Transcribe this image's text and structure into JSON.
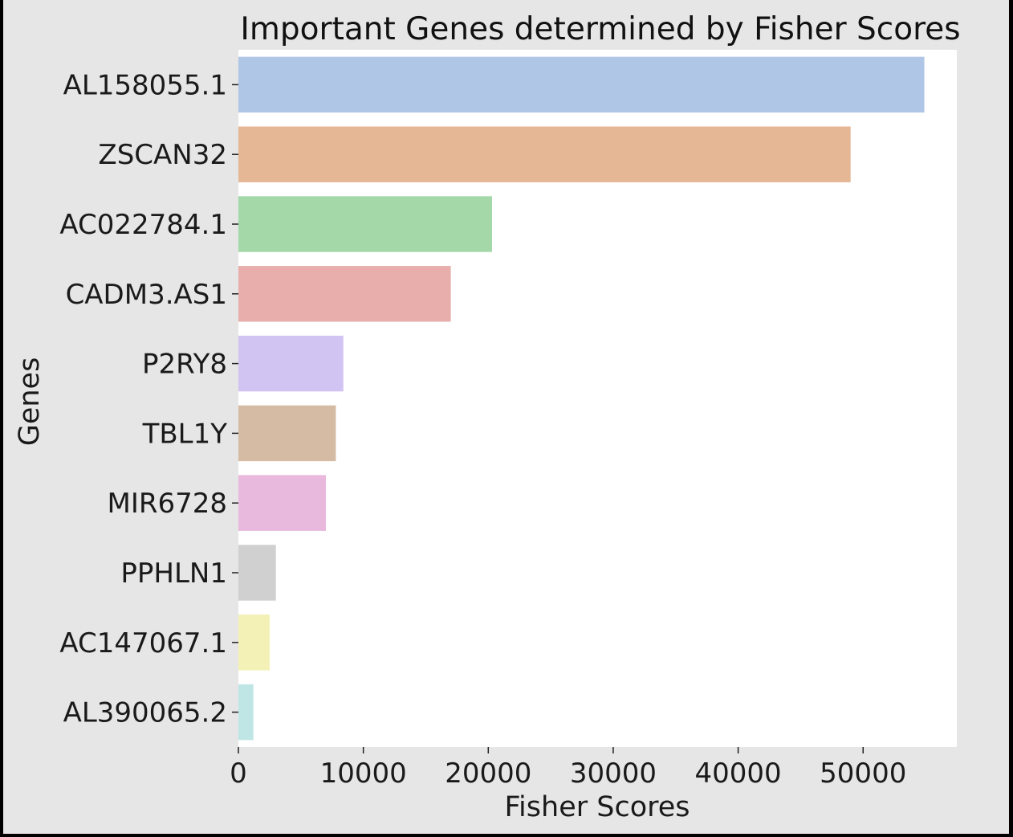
{
  "chart_data": {
    "type": "bar",
    "orientation": "horizontal",
    "title": "Important Genes determined by Fisher Scores",
    "xlabel": "Fisher Scores",
    "ylabel": "Genes",
    "categories": [
      "AL158055.1",
      "ZSCAN32",
      "AC022784.1",
      "CADM3.AS1",
      "P2RY8",
      "TBL1Y",
      "MIR6728",
      "PPHLN1",
      "AC147067.1",
      "AL390065.2"
    ],
    "values": [
      54900,
      49000,
      20300,
      17000,
      8400,
      7800,
      7000,
      3000,
      2500,
      1200
    ],
    "colors": [
      "#b0c6e6",
      "#e5b795",
      "#a5d8a9",
      "#e7aeab",
      "#d2c4f2",
      "#d5bba4",
      "#e8b8dd",
      "#d0d0d0",
      "#f3f1b6",
      "#bfe6e4"
    ],
    "xlim": [
      0,
      57500
    ],
    "xticks": [
      0,
      10000,
      20000,
      30000,
      40000,
      50000
    ],
    "grid": false,
    "legend": "none"
  }
}
